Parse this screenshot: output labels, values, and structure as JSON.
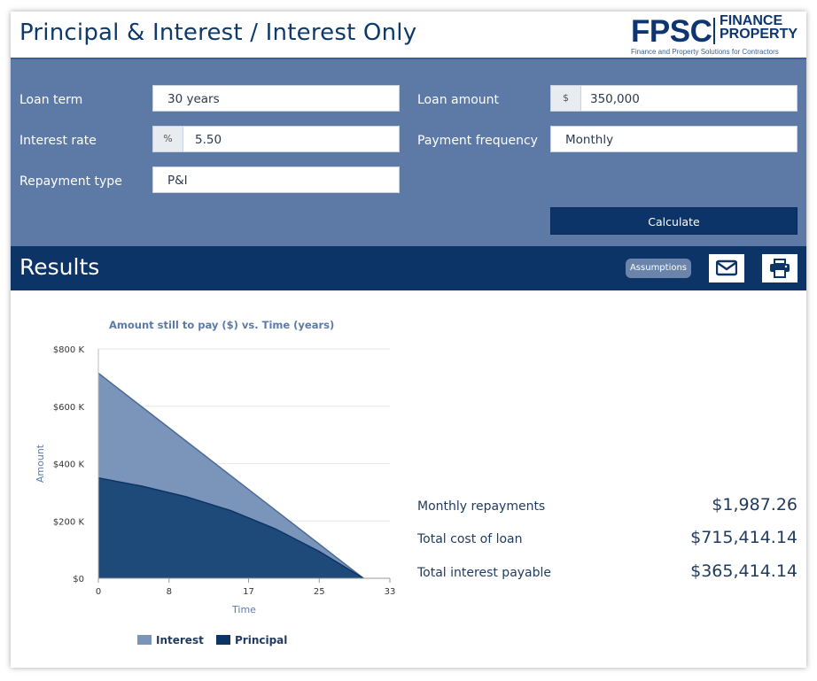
{
  "app": {
    "title": "Principal & Interest / Interest Only"
  },
  "logo": {
    "mark": "FPSC",
    "line1": "FINANCE",
    "line2": "PROPERTY",
    "tagline": "Finance and Property Solutions for Contractors"
  },
  "form": {
    "loan_term": {
      "label": "Loan term",
      "value": "30 years"
    },
    "interest_rate": {
      "label": "Interest rate",
      "prefix": "%",
      "value": "5.50"
    },
    "repayment_type": {
      "label": "Repayment type",
      "value": "P&I"
    },
    "loan_amount": {
      "label": "Loan amount",
      "prefix": "$",
      "value": "350,000"
    },
    "payment_frequency": {
      "label": "Payment frequency",
      "value": "Monthly"
    },
    "calculate_label": "Calculate"
  },
  "results": {
    "title": "Results",
    "assumptions_label": "Assumptions",
    "summary": [
      {
        "label": "Monthly repayments",
        "value": "$1,987.26"
      },
      {
        "label": "Total cost of loan",
        "value": "$715,414.14"
      },
      {
        "label": "Total interest payable",
        "value": "$365,414.14"
      }
    ]
  },
  "icons": {
    "email": "envelope-icon",
    "print": "printer-icon"
  },
  "colors": {
    "interest": "#7b94ba",
    "principal": "#1e4a7a",
    "header": "#0c3466",
    "panel": "#5d7aa6"
  },
  "chart_data": {
    "type": "area",
    "title": "Amount still to pay ($) vs. Time (years)",
    "xlabel": "Time",
    "ylabel": "Amount",
    "x_ticks": [
      "0",
      "8",
      "17",
      "25",
      "33"
    ],
    "y_ticks": [
      "$0",
      "$200 K",
      "$400 K",
      "$600 K",
      "$800 K"
    ],
    "xlim": [
      0,
      33
    ],
    "ylim": [
      0,
      800000
    ],
    "x": [
      0,
      5,
      10,
      15,
      20,
      25,
      30
    ],
    "series": [
      {
        "name": "Interest",
        "values": [
          715414,
          596178,
          476943,
          357707,
          238471,
          119236,
          0
        ]
      },
      {
        "name": "Principal",
        "values": [
          350000,
          321000,
          284000,
          236000,
          173000,
          94000,
          0
        ]
      }
    ],
    "legend": "bottom",
    "grid": true
  }
}
